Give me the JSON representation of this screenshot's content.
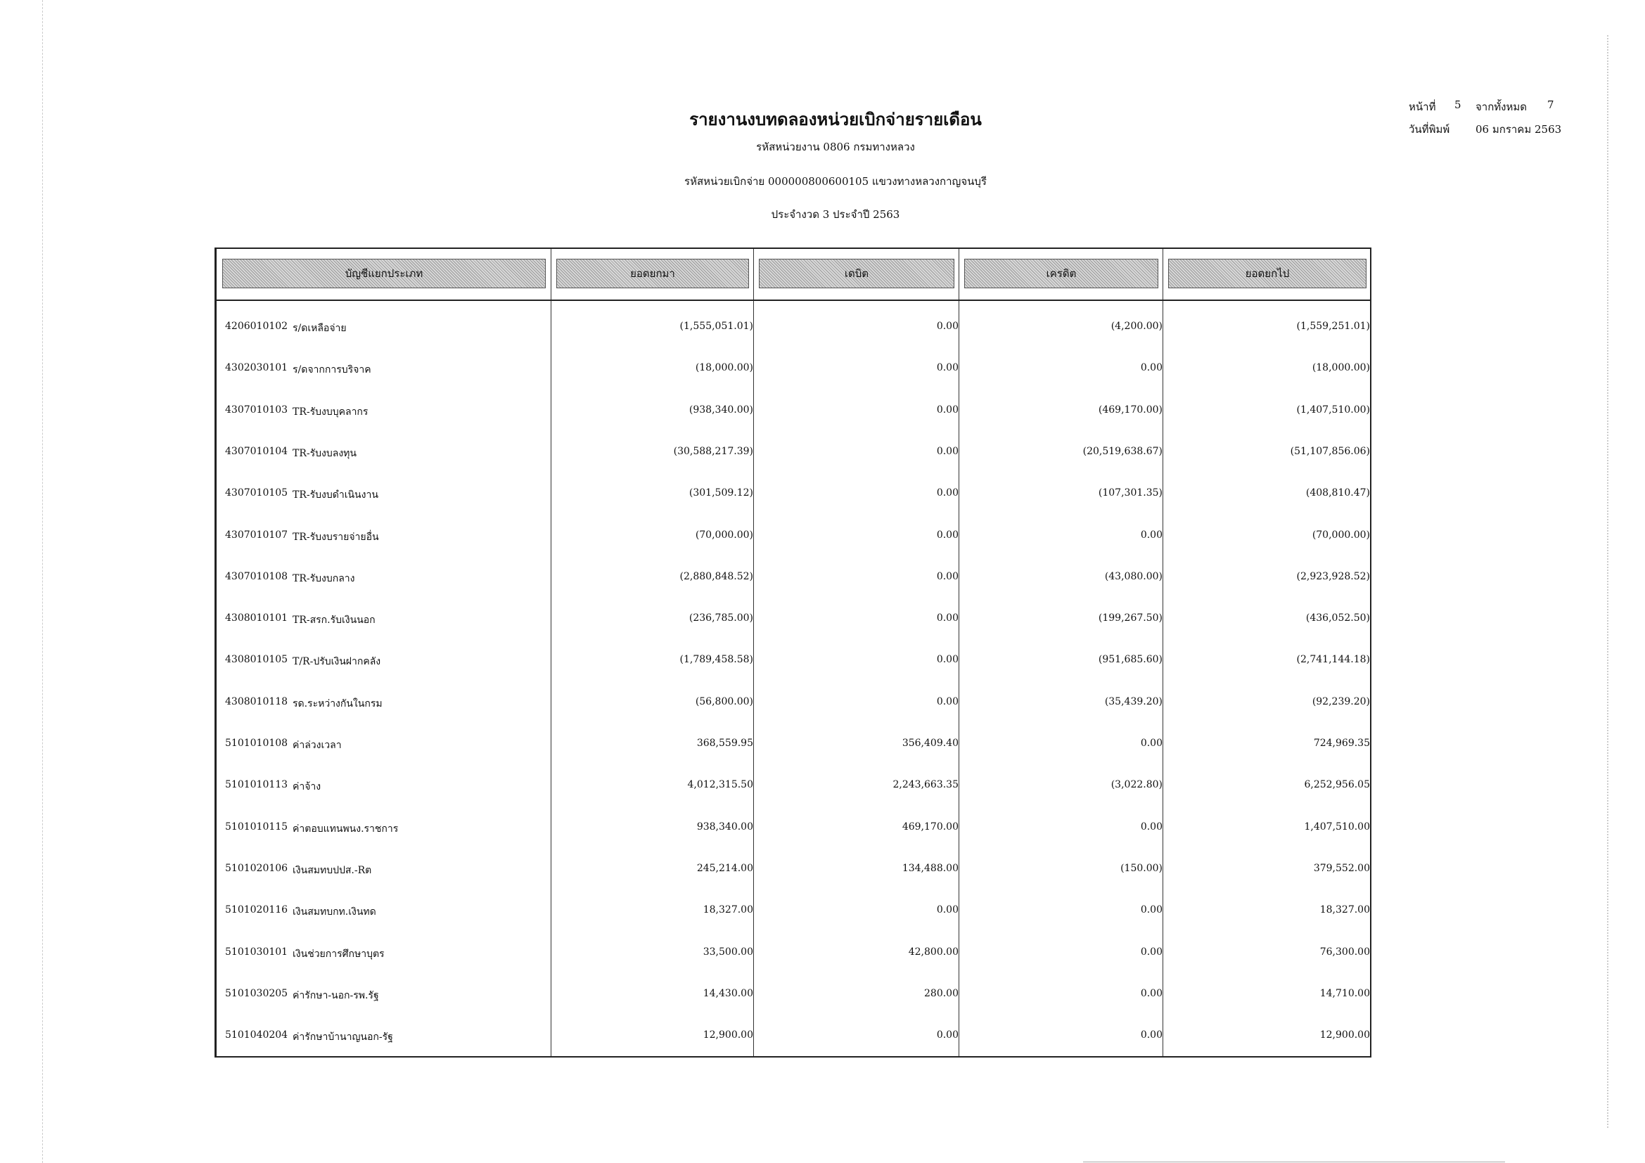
{
  "report": {
    "title": "รายงานงบทดลองหน่วยเบิกจ่ายรายเดือน",
    "agency": "รหัสหน่วยงาน 0806 กรมทางหลวง",
    "disbursing_unit": "รหัสหน่วยเบิกจ่าย 000000800600105 แขวงทางหลวงกาญจนบุรี",
    "period": "ประจำงวด 3 ประจำปี 2563"
  },
  "page_info": {
    "page_label": "หน้าที่",
    "page_number": "5",
    "total_label": "จากทั้งหมด",
    "total_pages": "7",
    "print_date_label": "วันที่พิมพ์",
    "print_date": "06 มกราคม 2563"
  },
  "table": {
    "headers": [
      "บัญชีแยกประเภท",
      "ยอดยกมา",
      "เดบิต",
      "เครดิต",
      "ยอดยกไป"
    ],
    "rows": [
      {
        "code": "4206010102",
        "name": "ร/ดเหลือจ่าย",
        "brought_forward": "(1,555,051.01)",
        "debit": "0.00",
        "credit": "(4,200.00)",
        "carried_forward": "(1,559,251.01)"
      },
      {
        "code": "4302030101",
        "name": "ร/ดจากการบริจาค",
        "brought_forward": "(18,000.00)",
        "debit": "0.00",
        "credit": "0.00",
        "carried_forward": "(18,000.00)"
      },
      {
        "code": "4307010103",
        "name": "TR-รับงบบุคลากร",
        "brought_forward": "(938,340.00)",
        "debit": "0.00",
        "credit": "(469,170.00)",
        "carried_forward": "(1,407,510.00)"
      },
      {
        "code": "4307010104",
        "name": "TR-รับงบลงทุน",
        "brought_forward": "(30,588,217.39)",
        "debit": "0.00",
        "credit": "(20,519,638.67)",
        "carried_forward": "(51,107,856.06)"
      },
      {
        "code": "4307010105",
        "name": "TR-รับงบดำเนินงาน",
        "brought_forward": "(301,509.12)",
        "debit": "0.00",
        "credit": "(107,301.35)",
        "carried_forward": "(408,810.47)"
      },
      {
        "code": "4307010107",
        "name": "TR-รับงบรายจ่ายอื่น",
        "brought_forward": "(70,000.00)",
        "debit": "0.00",
        "credit": "0.00",
        "carried_forward": "(70,000.00)"
      },
      {
        "code": "4307010108",
        "name": "TR-รับงบกลาง",
        "brought_forward": "(2,880,848.52)",
        "debit": "0.00",
        "credit": "(43,080.00)",
        "carried_forward": "(2,923,928.52)"
      },
      {
        "code": "4308010101",
        "name": "TR-สรก.รับเงินนอก",
        "brought_forward": "(236,785.00)",
        "debit": "0.00",
        "credit": "(199,267.50)",
        "carried_forward": "(436,052.50)"
      },
      {
        "code": "4308010105",
        "name": "T/R-ปรับเงินฝากคลัง",
        "brought_forward": "(1,789,458.58)",
        "debit": "0.00",
        "credit": "(951,685.60)",
        "carried_forward": "(2,741,144.18)"
      },
      {
        "code": "4308010118",
        "name": "รด.ระหว่างกันในกรม",
        "brought_forward": "(56,800.00)",
        "debit": "0.00",
        "credit": "(35,439.20)",
        "carried_forward": "(92,239.20)"
      },
      {
        "code": "5101010108",
        "name": "ค่าล่วงเวลา",
        "brought_forward": "368,559.95",
        "debit": "356,409.40",
        "credit": "0.00",
        "carried_forward": "724,969.35"
      },
      {
        "code": "5101010113",
        "name": "ค่าจ้าง",
        "brought_forward": "4,012,315.50",
        "debit": "2,243,663.35",
        "credit": "(3,022.80)",
        "carried_forward": "6,252,956.05"
      },
      {
        "code": "5101010115",
        "name": "ค่าตอบแทนพนง.ราชการ",
        "brought_forward": "938,340.00",
        "debit": "469,170.00",
        "credit": "0.00",
        "carried_forward": "1,407,510.00"
      },
      {
        "code": "5101020106",
        "name": "เงินสมทบปปส.-Rต",
        "brought_forward": "245,214.00",
        "debit": "134,488.00",
        "credit": "(150.00)",
        "carried_forward": "379,552.00"
      },
      {
        "code": "5101020116",
        "name": "เงินสมทบกท.เงินทด",
        "brought_forward": "18,327.00",
        "debit": "0.00",
        "credit": "0.00",
        "carried_forward": "18,327.00"
      },
      {
        "code": "5101030101",
        "name": "เงินช่วยการศึกษาบุตร",
        "brought_forward": "33,500.00",
        "debit": "42,800.00",
        "credit": "0.00",
        "carried_forward": "76,300.00"
      },
      {
        "code": "5101030205",
        "name": "ค่ารักษา-นอก-รพ.รัฐ",
        "brought_forward": "14,430.00",
        "debit": "280.00",
        "credit": "0.00",
        "carried_forward": "14,710.00"
      },
      {
        "code": "5101040204",
        "name": "ค่ารักษาบ้านาญนอก-รัฐ",
        "brought_forward": "12,900.00",
        "debit": "0.00",
        "credit": "0.00",
        "carried_forward": "12,900.00"
      }
    ]
  }
}
